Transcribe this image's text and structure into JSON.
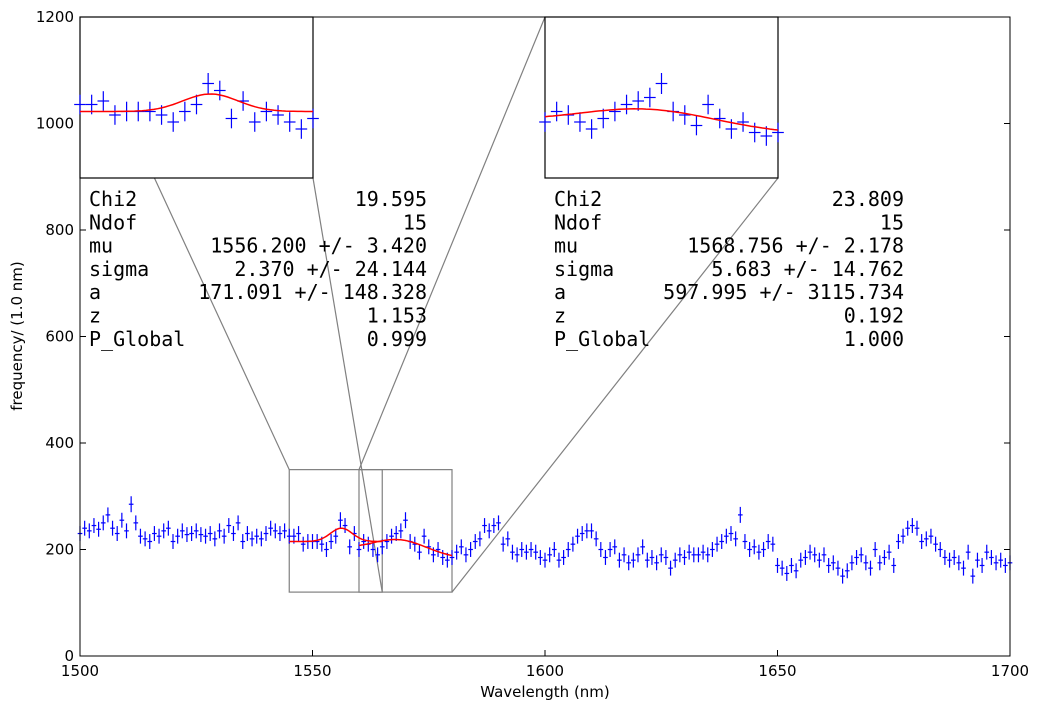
{
  "chart_data": {
    "type": "scatter",
    "xlabel": "Wavelength (nm)",
    "ylabel": "frequency/ (1.0 nm)",
    "xlim": [
      1500,
      1700
    ],
    "ylim": [
      0,
      1200
    ],
    "x_ticks": [
      "1500",
      "1550",
      "1600",
      "1650",
      "1700"
    ],
    "y_ticks": [
      "0",
      "200",
      "400",
      "600",
      "800",
      "1000",
      "1200"
    ],
    "colors": {
      "data": "#0000ff",
      "fit": "#ff0000",
      "frame": "#808080"
    },
    "series": [
      {
        "x": [
          1500,
          1501,
          1502,
          1503,
          1504,
          1505,
          1506,
          1507,
          1508,
          1509,
          1510,
          1511,
          1512,
          1513,
          1514,
          1515,
          1516,
          1517,
          1518,
          1519,
          1520,
          1521,
          1522,
          1523,
          1524,
          1525,
          1526,
          1527,
          1528,
          1529,
          1530,
          1531,
          1532,
          1533,
          1534,
          1535,
          1536,
          1537,
          1538,
          1539,
          1540,
          1541,
          1542,
          1543,
          1544,
          1545,
          1546,
          1547,
          1548,
          1549,
          1550,
          1551,
          1552,
          1553,
          1554,
          1555,
          1556,
          1557,
          1558,
          1559,
          1560,
          1561,
          1562,
          1563,
          1564,
          1565,
          1566,
          1567,
          1568,
          1569,
          1570,
          1571,
          1572,
          1573,
          1574,
          1575,
          1576,
          1577,
          1578,
          1579,
          1580,
          1581,
          1582,
          1583,
          1584,
          1585,
          1586,
          1587,
          1588,
          1589,
          1590,
          1591,
          1592,
          1593,
          1594,
          1595,
          1596,
          1597,
          1598,
          1599,
          1600,
          1601,
          1602,
          1603,
          1604,
          1605,
          1606,
          1607,
          1608,
          1609,
          1610,
          1611,
          1612,
          1613,
          1614,
          1615,
          1616,
          1617,
          1618,
          1619,
          1620,
          1621,
          1622,
          1623,
          1624,
          1625,
          1626,
          1627,
          1628,
          1629,
          1630,
          1631,
          1632,
          1633,
          1634,
          1635,
          1636,
          1637,
          1638,
          1639,
          1640,
          1641,
          1642,
          1643,
          1644,
          1645,
          1646,
          1647,
          1648,
          1649,
          1650,
          1651,
          1652,
          1653,
          1654,
          1655,
          1656,
          1657,
          1658,
          1659,
          1660,
          1661,
          1662,
          1663,
          1664,
          1665,
          1666,
          1667,
          1668,
          1669,
          1670,
          1671,
          1672,
          1673,
          1674,
          1675,
          1676,
          1677,
          1678,
          1679,
          1680,
          1681,
          1682,
          1683,
          1684,
          1685,
          1686,
          1687,
          1688,
          1689,
          1690,
          1691,
          1692,
          1693,
          1694,
          1695,
          1696,
          1697,
          1698,
          1699,
          1700
        ],
        "y": [
          230,
          240,
          235,
          245,
          238,
          250,
          265,
          240,
          230,
          255,
          235,
          285,
          250,
          225,
          220,
          215,
          230,
          225,
          235,
          240,
          215,
          225,
          235,
          228,
          230,
          235,
          228,
          225,
          230,
          220,
          235,
          225,
          245,
          230,
          250,
          215,
          230,
          220,
          225,
          220,
          230,
          240,
          235,
          230,
          235,
          225,
          225,
          230,
          210,
          215,
          215,
          215,
          210,
          200,
          215,
          225,
          255,
          245,
          205,
          230,
          200,
          215,
          210,
          200,
          190,
          205,
          215,
          225,
          230,
          235,
          255,
          215,
          210,
          195,
          225,
          205,
          190,
          200,
          185,
          180,
          185,
          195,
          205,
          190,
          200,
          215,
          220,
          245,
          235,
          245,
          250,
          210,
          220,
          195,
          190,
          200,
          195,
          200,
          195,
          185,
          180,
          190,
          200,
          180,
          185,
          200,
          210,
          225,
          230,
          235,
          235,
          220,
          200,
          185,
          200,
          205,
          180,
          190,
          175,
          180,
          190,
          205,
          180,
          185,
          175,
          190,
          185,
          165,
          180,
          190,
          185,
          195,
          190,
          190,
          195,
          190,
          200,
          210,
          215,
          225,
          230,
          220,
          265,
          215,
          200,
          205,
          195,
          200,
          215,
          210,
          170,
          165,
          155,
          170,
          160,
          180,
          185,
          195,
          190,
          180,
          190,
          170,
          175,
          165,
          150,
          160,
          175,
          185,
          190,
          175,
          165,
          200,
          175,
          185,
          195,
          170,
          215,
          225,
          240,
          245,
          240,
          215,
          220,
          225,
          210,
          200,
          185,
          180,
          185,
          175,
          165,
          195,
          150,
          180,
          170,
          195,
          185,
          175,
          180,
          170,
          175
        ],
        "yerr": [
          14,
          14,
          14,
          14,
          14,
          14,
          14,
          14,
          14,
          14,
          14,
          15,
          14,
          14,
          14,
          14,
          14,
          14,
          14,
          14,
          14,
          14,
          14,
          14,
          14,
          14,
          14,
          14,
          14,
          14,
          14,
          14,
          14,
          14,
          14,
          14,
          14,
          14,
          14,
          14,
          14,
          14,
          14,
          14,
          14,
          14,
          14,
          14,
          14,
          14,
          14,
          14,
          14,
          14,
          14,
          14,
          15,
          14,
          14,
          14,
          14,
          14,
          14,
          14,
          14,
          14,
          14,
          14,
          14,
          14,
          15,
          14,
          14,
          14,
          14,
          14,
          14,
          14,
          14,
          14,
          14,
          14,
          14,
          14,
          14,
          14,
          14,
          14,
          14,
          14,
          14,
          14,
          14,
          14,
          14,
          14,
          14,
          14,
          14,
          14,
          14,
          14,
          14,
          14,
          14,
          14,
          14,
          14,
          14,
          14,
          14,
          14,
          14,
          14,
          14,
          14,
          14,
          14,
          14,
          14,
          14,
          14,
          14,
          14,
          14,
          14,
          14,
          14,
          14,
          14,
          14,
          14,
          14,
          14,
          14,
          14,
          14,
          14,
          14,
          14,
          14,
          14,
          15,
          14,
          14,
          14,
          14,
          14,
          14,
          14,
          14,
          14,
          14,
          14,
          14,
          14,
          14,
          14,
          14,
          14,
          14,
          14,
          14,
          14,
          14,
          14,
          14,
          14,
          14,
          14,
          14,
          14,
          14,
          14,
          14,
          14,
          14,
          14,
          14,
          14,
          14,
          14,
          14,
          14,
          14,
          14,
          14,
          14,
          14,
          14,
          14,
          14,
          14,
          14,
          14,
          14,
          14,
          14,
          14,
          14,
          14
        ],
        "xerr": 0.5
      }
    ],
    "fits": [
      {
        "mu": 1556.2,
        "sigma": 2.37,
        "a": 171.091,
        "baseline": 215,
        "x_range": [
          1545,
          1565
        ],
        "window": {
          "x": [
            1545,
            1565
          ],
          "y": [
            120,
            350
          ]
        }
      },
      {
        "mu": 1568.756,
        "sigma": 5.683,
        "a": 597.995,
        "baseline_start": 200,
        "baseline_end": 185,
        "x_range": [
          1560,
          1580
        ],
        "window": {
          "x": [
            1560,
            1580
          ],
          "y": [
            120,
            350
          ]
        }
      }
    ],
    "insets": [
      {
        "xlim": [
          1545,
          1565
        ],
        "ylim": [
          120,
          350
        ],
        "fit_index": 0,
        "stats": [
          {
            "label": "Chi2",
            "value": "19.595"
          },
          {
            "label": "Ndof",
            "value": "15"
          },
          {
            "label": "mu",
            "value": "1556.200 +/- 3.420"
          },
          {
            "label": "sigma",
            "value": "2.370 +/- 24.144"
          },
          {
            "label": "a",
            "value": "171.091 +/- 148.328"
          },
          {
            "label": "z",
            "value": "1.153"
          },
          {
            "label": "P_Global",
            "value": "0.999"
          }
        ]
      },
      {
        "xlim": [
          1560,
          1580
        ],
        "ylim": [
          120,
          350
        ],
        "fit_index": 1,
        "stats": [
          {
            "label": "Chi2",
            "value": "23.809"
          },
          {
            "label": "Ndof",
            "value": "15"
          },
          {
            "label": "mu",
            "value": "1568.756 +/- 2.178"
          },
          {
            "label": "sigma",
            "value": "5.683 +/- 14.762"
          },
          {
            "label": "a",
            "value": "597.995 +/- 3115.734"
          },
          {
            "label": "z",
            "value": "0.192"
          },
          {
            "label": "P_Global",
            "value": "1.000"
          }
        ]
      }
    ]
  }
}
